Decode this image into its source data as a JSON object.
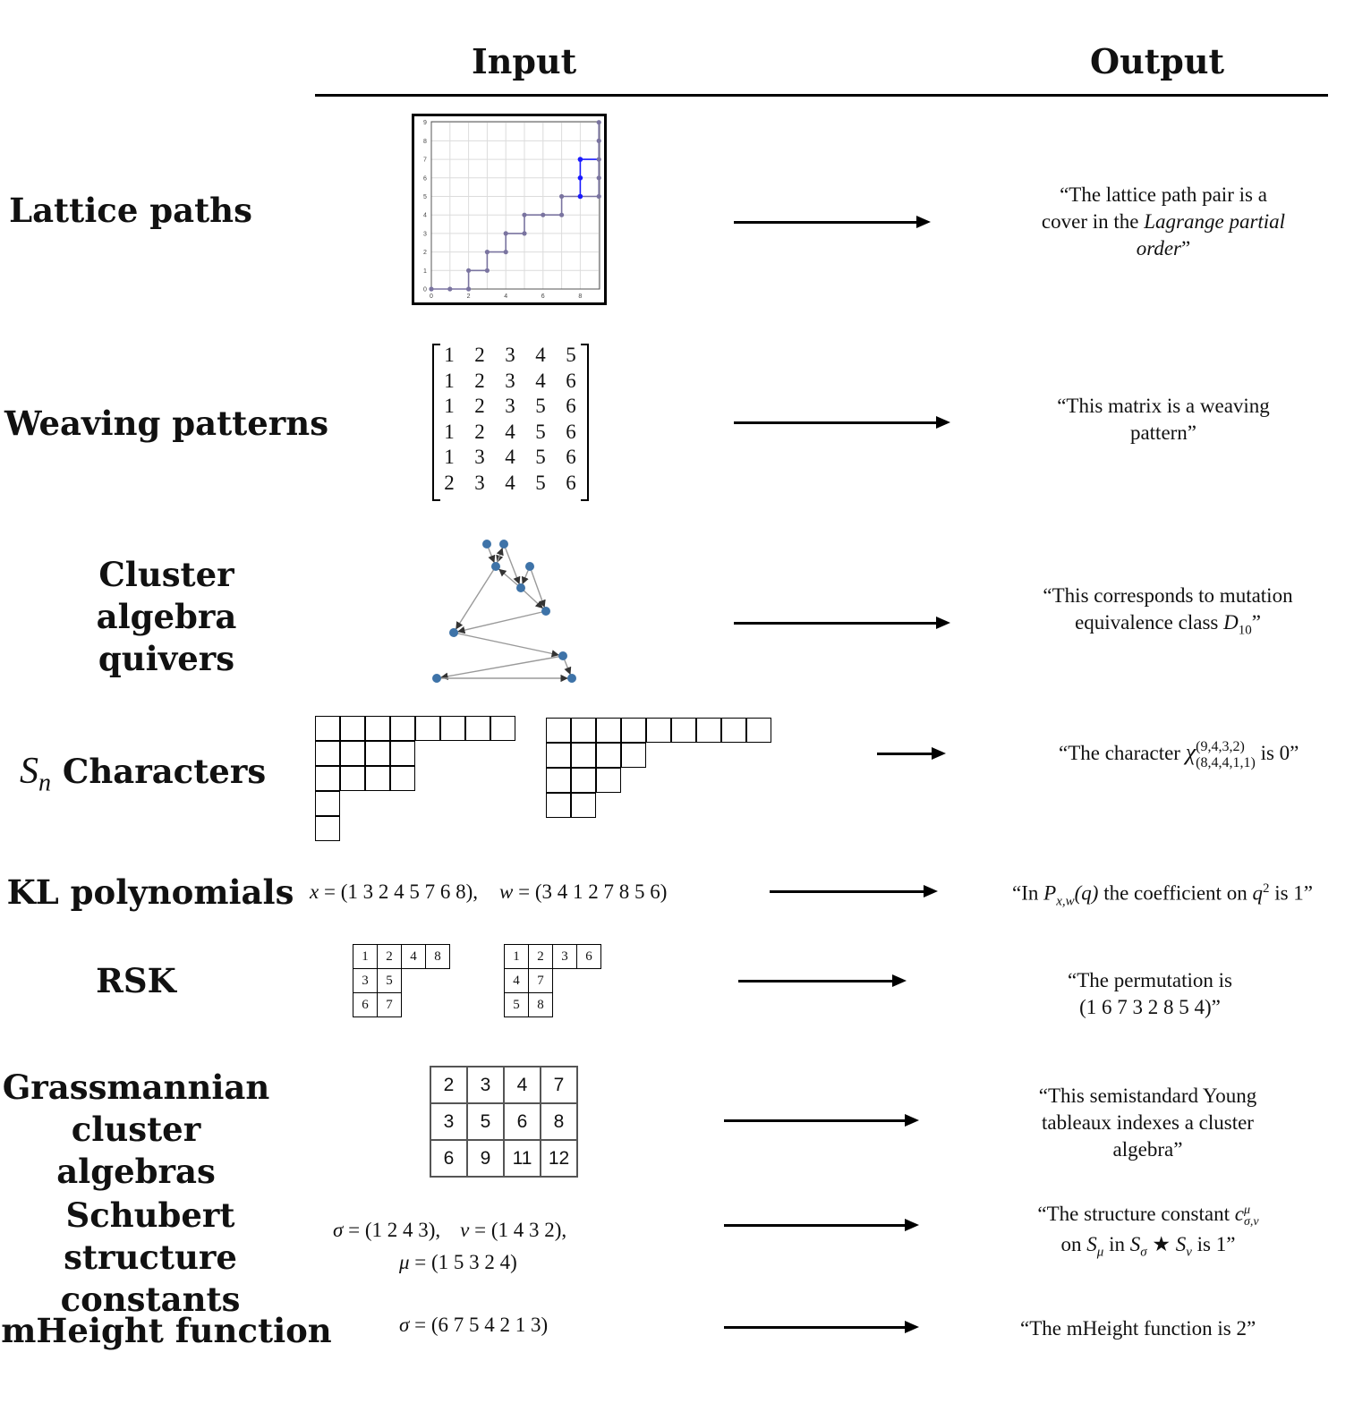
{
  "headers": {
    "input": "Input",
    "output": "Output"
  },
  "rows": {
    "lattice": {
      "label": "Lattice paths",
      "output_line1": "“The lattice path pair is a",
      "output_line2a": "cover in the ",
      "output_line2b": "Lagrange partial",
      "output_line3a": "order",
      "output_line3b": "”",
      "x_ticks": [
        "0",
        "2",
        "4",
        "6",
        "8"
      ],
      "y_ticks": [
        "0",
        "1",
        "2",
        "3",
        "4",
        "5",
        "6",
        "7",
        "8",
        "9"
      ]
    },
    "weaving": {
      "label": "Weaving patterns",
      "matrix": [
        [
          "1",
          "2",
          "3",
          "4",
          "5"
        ],
        [
          "1",
          "2",
          "3",
          "4",
          "6"
        ],
        [
          "1",
          "2",
          "3",
          "5",
          "6"
        ],
        [
          "1",
          "2",
          "4",
          "5",
          "6"
        ],
        [
          "1",
          "3",
          "4",
          "5",
          "6"
        ],
        [
          "2",
          "3",
          "4",
          "5",
          "6"
        ]
      ],
      "output_line1": "“This matrix is a weaving",
      "output_line2": "pattern”"
    },
    "quiver": {
      "label_line1": "Cluster algebra",
      "label_line2": "quivers",
      "output_line1": "“This corresponds to mutation",
      "output_line2a": "equivalence class ",
      "output_D": "D",
      "output_sub": "10",
      "output_end": "”"
    },
    "sn": {
      "label_S": "S",
      "label_n": "n",
      "label_rest": " Characters",
      "output_a": "“The character ",
      "chi": "χ",
      "sup": "(9,4,3,2)",
      "sub": "(8,4,4,1,1)",
      "output_b": " is 0”"
    },
    "kl": {
      "label": "KL polynomials",
      "input_x": "x",
      "input_x_val": " = (1 3 2 4 5 7 6 8),",
      "input_w": "w",
      "input_w_val": " = (3 4 1 2 7 8 5 6)",
      "output_a": "“In ",
      "output_P": "P",
      "output_sub": "x,w",
      "output_q": "(q)",
      "output_mid": " the coefficient on ",
      "output_q2": "q",
      "output_sup": "2",
      "output_end": " is  1”"
    },
    "rsk": {
      "label": "RSK",
      "tableau_P": [
        [
          "1",
          "2",
          "4",
          "8"
        ],
        [
          "3",
          "5"
        ],
        [
          "6",
          "7"
        ]
      ],
      "tableau_Q": [
        [
          "1",
          "2",
          "3",
          "6"
        ],
        [
          "4",
          "7"
        ],
        [
          "5",
          "8"
        ]
      ],
      "output_line1": "“The permutation is",
      "output_line2": "(1 6 7 3 2 8 5 4)”"
    },
    "grass": {
      "label_line1": "Grassmannian",
      "label_line2": "cluster algebras",
      "tableau": [
        [
          "2",
          "3",
          "4",
          "7"
        ],
        [
          "3",
          "5",
          "6",
          "8"
        ],
        [
          "6",
          "9",
          "11",
          "12"
        ]
      ],
      "output_line1": "“This semistandard Young",
      "output_line2": "tableaux indexes a cluster",
      "output_line3": "algebra”"
    },
    "schubert": {
      "label_line1": "Schubert structure",
      "label_line2": "constants",
      "in_sigma": "σ",
      "in_sigma_val": " = (1 2 4 3),",
      "in_nu": "ν",
      "in_nu_val": " = (1 4 3 2),",
      "in_mu": "μ",
      "in_mu_val": " = (1 5 3 2 4)",
      "output_line1a": "“The structure constant ",
      "output_c": "c",
      "output_c_sup": "μ",
      "output_c_sub": "σ,ν",
      "output_on": "on ",
      "S": "S",
      "sub_mu": "μ",
      "output_in": " in ",
      "sub_sigma": "σ",
      "star": " ★ ",
      "sub_nu": "ν",
      "output_end": " is 1”"
    },
    "mheight": {
      "label": "mHeight function",
      "in_sigma": "σ",
      "in_val": " = (6 7 5 4 2 1 3)",
      "output": "“The mHeight function is 2”"
    }
  },
  "colors": {
    "lattice_path": "#7a74a0",
    "highlight": "#1a1aff",
    "quiver_node": "#3e73a8",
    "edge": "#999999"
  }
}
